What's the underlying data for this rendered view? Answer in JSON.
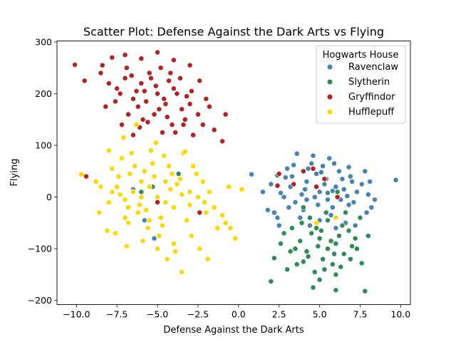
{
  "chart_data": {
    "type": "scatter",
    "title": "Scatter Plot: Defense Against the Dark Arts vs Flying",
    "xlabel": "Defense Against the Dark Arts",
    "ylabel": "Flying",
    "xlim": [
      -11.2,
      10.6
    ],
    "ylim": [
      -208,
      302
    ],
    "xticks": [
      -10.0,
      -7.5,
      -5.0,
      -2.5,
      0.0,
      2.5,
      5.0,
      7.5,
      10.0
    ],
    "xtick_labels": [
      "−10.0",
      "−7.5",
      "−5.0",
      "−2.5",
      "0.0",
      "2.5",
      "5.0",
      "7.5",
      "10.0"
    ],
    "yticks": [
      -200,
      -100,
      0,
      100,
      200,
      300
    ],
    "ytick_labels": [
      "−200",
      "−100",
      "0",
      "100",
      "200",
      "300"
    ],
    "grid": false,
    "legend": {
      "title": "Hogwarts House",
      "placement": "top-right"
    },
    "series": [
      {
        "name": "Ravenclaw",
        "color": "#4682b4",
        "points": [
          [
            5.0,
            10
          ],
          [
            4.2,
            30
          ],
          [
            6.0,
            20
          ],
          [
            3.5,
            -10
          ],
          [
            5.5,
            -5
          ],
          [
            4.8,
            45
          ],
          [
            6.5,
            15
          ],
          [
            2.8,
            0
          ],
          [
            3.0,
            55
          ],
          [
            4.5,
            65
          ],
          [
            5.2,
            60
          ],
          [
            6.2,
            50
          ],
          [
            7.0,
            30
          ],
          [
            7.3,
            10
          ],
          [
            6.8,
            -15
          ],
          [
            4.0,
            -25
          ],
          [
            5.8,
            -20
          ],
          [
            3.2,
            20
          ],
          [
            2.2,
            -30
          ],
          [
            4.6,
            80
          ],
          [
            5.6,
            75
          ],
          [
            7.8,
            50
          ],
          [
            8.0,
            5
          ],
          [
            8.2,
            -20
          ],
          [
            7.5,
            -40
          ],
          [
            6.6,
            -50
          ],
          [
            3.8,
            -40
          ],
          [
            2.5,
            -55
          ],
          [
            1.8,
            -25
          ],
          [
            1.5,
            10
          ],
          [
            0.8,
            44
          ],
          [
            9.7,
            33
          ],
          [
            3.6,
            84
          ],
          [
            5.9,
            65
          ],
          [
            6.9,
            40
          ],
          [
            4.9,
            -15
          ],
          [
            5.3,
            25
          ],
          [
            3.9,
            5
          ],
          [
            6.3,
            -5
          ],
          [
            4.4,
            -55
          ],
          [
            2.0,
            25
          ],
          [
            7.1,
            -10
          ],
          [
            5.4,
            35
          ],
          [
            3.3,
            40
          ],
          [
            6.1,
            0
          ],
          [
            4.1,
            15
          ],
          [
            5.7,
            -35
          ],
          [
            2.6,
            8
          ],
          [
            7.6,
            25
          ],
          [
            8.4,
            -5
          ],
          [
            6.4,
            35
          ],
          [
            4.7,
            0
          ],
          [
            3.1,
            -20
          ],
          [
            5.1,
            48
          ],
          [
            6.7,
            2
          ],
          [
            2.9,
            38
          ],
          [
            7.9,
            -30
          ],
          [
            5.0,
            -45
          ],
          [
            4.3,
            55
          ],
          [
            6.0,
            -60
          ],
          [
            -5.5,
            20
          ],
          [
            -6.5,
            15
          ],
          [
            -5.2,
            -80
          ],
          [
            -5.8,
            -45
          ],
          [
            4.2,
            -5
          ],
          [
            5.5,
            8
          ],
          [
            3.4,
            62
          ],
          [
            6.8,
            58
          ],
          [
            7.2,
            -55
          ],
          [
            8.1,
            30
          ],
          [
            2.4,
            -40
          ],
          [
            5.8,
            12
          ]
        ]
      },
      {
        "name": "Slytherin",
        "color": "#2e8b57",
        "points": [
          [
            5.0,
            -80
          ],
          [
            5.5,
            -100
          ],
          [
            6.0,
            -90
          ],
          [
            4.5,
            -70
          ],
          [
            6.5,
            -110
          ],
          [
            5.2,
            -120
          ],
          [
            4.8,
            -60
          ],
          [
            6.2,
            -75
          ],
          [
            7.0,
            -95
          ],
          [
            3.8,
            -85
          ],
          [
            5.8,
            -130
          ],
          [
            4.2,
            -105
          ],
          [
            6.8,
            -65
          ],
          [
            5.3,
            -140
          ],
          [
            4.0,
            -125
          ],
          [
            7.2,
            -80
          ],
          [
            3.5,
            -100
          ],
          [
            6.0,
            -150
          ],
          [
            5.0,
            -160
          ],
          [
            4.6,
            -175
          ],
          [
            2.0,
            -163
          ],
          [
            7.8,
            -182
          ],
          [
            6.0,
            -180
          ],
          [
            3.0,
            -140
          ],
          [
            2.2,
            -118
          ],
          [
            3.3,
            -60
          ],
          [
            2.8,
            -70
          ],
          [
            7.5,
            -40
          ],
          [
            8.0,
            -75
          ],
          [
            7.6,
            -128
          ],
          [
            6.6,
            -30
          ],
          [
            5.5,
            -45
          ],
          [
            4.4,
            -40
          ],
          [
            3.6,
            -130
          ],
          [
            4.9,
            -95
          ],
          [
            6.4,
            -55
          ],
          [
            5.7,
            -85
          ],
          [
            4.3,
            -115
          ],
          [
            6.9,
            -120
          ],
          [
            5.1,
            -65
          ],
          [
            3.9,
            -50
          ],
          [
            7.3,
            -100
          ],
          [
            5.9,
            -110
          ],
          [
            4.7,
            -145
          ],
          [
            6.3,
            -135
          ],
          [
            2.6,
            -90
          ],
          [
            3.2,
            -105
          ],
          [
            6.1,
            10
          ],
          [
            4.0,
            -20
          ],
          [
            5.4,
            -30
          ],
          [
            2.4,
            42
          ],
          [
            -3.7,
            45
          ],
          [
            -5.3,
            20
          ],
          [
            -6.0,
            10
          ]
        ]
      },
      {
        "name": "Gryffindor",
        "color": "#b22222",
        "points": [
          [
            -5.0,
            200
          ],
          [
            -6.0,
            220
          ],
          [
            -4.5,
            180
          ],
          [
            -5.5,
            240
          ],
          [
            -4.0,
            210
          ],
          [
            -6.5,
            190
          ],
          [
            -3.5,
            170
          ],
          [
            -7.0,
            230
          ],
          [
            -5.2,
            160
          ],
          [
            -4.8,
            250
          ],
          [
            -6.2,
            175
          ],
          [
            -3.8,
            200
          ],
          [
            -5.8,
            205
          ],
          [
            -4.3,
            225
          ],
          [
            -7.5,
            210
          ],
          [
            -3.0,
            180
          ],
          [
            -6.8,
            160
          ],
          [
            -5.6,
            145
          ],
          [
            -4.1,
            140
          ],
          [
            -2.5,
            160
          ],
          [
            -2.0,
            190
          ],
          [
            -1.5,
            130
          ],
          [
            -1.0,
            108
          ],
          [
            -0.8,
            160
          ],
          [
            -2.8,
            120
          ],
          [
            -3.3,
            150
          ],
          [
            -6.5,
            120
          ],
          [
            -7.2,
            140
          ],
          [
            -8.0,
            220
          ],
          [
            -8.5,
            240
          ],
          [
            -7.8,
            270
          ],
          [
            -7.0,
            275
          ],
          [
            -6.0,
            268
          ],
          [
            -5.0,
            280
          ],
          [
            -4.2,
            240
          ],
          [
            -3.0,
            255
          ],
          [
            -2.4,
            225
          ],
          [
            -9.5,
            225
          ],
          [
            -10.1,
            256
          ],
          [
            -7.6,
            185
          ],
          [
            -8.2,
            175
          ],
          [
            -6.9,
            250
          ],
          [
            -5.4,
            230
          ],
          [
            -4.6,
            190
          ],
          [
            -3.6,
            230
          ],
          [
            -5.9,
            150
          ],
          [
            -4.9,
            170
          ],
          [
            -2.2,
            140
          ],
          [
            -3.9,
            125
          ],
          [
            -6.3,
            205
          ],
          [
            -5.1,
            215
          ],
          [
            -4.4,
            155
          ],
          [
            -5.7,
            185
          ],
          [
            -6.6,
            235
          ],
          [
            -4.0,
            265
          ],
          [
            -2.9,
            205
          ],
          [
            -1.8,
            175
          ],
          [
            -3.2,
            195
          ],
          [
            -7.3,
            200
          ],
          [
            -8.4,
            255
          ],
          [
            -6.1,
            135
          ],
          [
            -4.7,
            125
          ],
          [
            -3.4,
            140
          ],
          [
            -9.4,
            40
          ],
          [
            -5.0,
            -10
          ],
          [
            2.5,
            45
          ],
          [
            2.4,
            22
          ],
          [
            3.4,
            25
          ],
          [
            4.0,
            50
          ],
          [
            4.8,
            20
          ],
          [
            5.3,
            35
          ],
          [
            4.6,
            55
          ],
          [
            6.1,
            0
          ],
          [
            -2.4,
            -30
          ]
        ]
      },
      {
        "name": "Hufflepuff",
        "color": "#ffd700",
        "points": [
          [
            -5.0,
            0
          ],
          [
            -5.5,
            20
          ],
          [
            -4.5,
            -10
          ],
          [
            -6.0,
            30
          ],
          [
            -4.0,
            -20
          ],
          [
            -6.5,
            10
          ],
          [
            -3.5,
            5
          ],
          [
            -7.0,
            -5
          ],
          [
            -5.2,
            40
          ],
          [
            -4.8,
            -40
          ],
          [
            -6.2,
            -30
          ],
          [
            -3.8,
            25
          ],
          [
            -5.8,
            50
          ],
          [
            -4.3,
            60
          ],
          [
            -7.5,
            20
          ],
          [
            -3.0,
            -15
          ],
          [
            -6.8,
            -50
          ],
          [
            -5.6,
            -60
          ],
          [
            -4.1,
            45
          ],
          [
            -2.5,
            0
          ],
          [
            -2.0,
            -30
          ],
          [
            -1.5,
            -20
          ],
          [
            -1.0,
            -35
          ],
          [
            -0.5,
            -60
          ],
          [
            -0.2,
            -80
          ],
          [
            0.2,
            15
          ],
          [
            -8.0,
            -10
          ],
          [
            -8.5,
            20
          ],
          [
            -9.7,
            44
          ],
          [
            -8.8,
            30
          ],
          [
            -7.8,
            55
          ],
          [
            -7.2,
            75
          ],
          [
            -6.6,
            85
          ],
          [
            -5.4,
            90
          ],
          [
            -4.6,
            80
          ],
          [
            -3.4,
            85
          ],
          [
            -2.8,
            60
          ],
          [
            -2.2,
            30
          ],
          [
            -1.8,
            10
          ],
          [
            -7.6,
            -70
          ],
          [
            -6.9,
            -95
          ],
          [
            -5.9,
            -85
          ],
          [
            -4.9,
            -75
          ],
          [
            -3.9,
            -105
          ],
          [
            -3.5,
            -145
          ],
          [
            -4.4,
            -120
          ],
          [
            -2.4,
            -100
          ],
          [
            -1.9,
            -120
          ],
          [
            -0.8,
            -50
          ],
          [
            -8.1,
            -65
          ],
          [
            -7.1,
            115
          ],
          [
            -6.3,
            140
          ],
          [
            -8.0,
            90
          ],
          [
            -5.3,
            65
          ],
          [
            -6.1,
            -15
          ],
          [
            -4.2,
            15
          ],
          [
            -3.2,
            -45
          ],
          [
            -2.6,
            45
          ],
          [
            -5.7,
            -25
          ],
          [
            -6.7,
            45
          ],
          [
            -7.3,
            5
          ],
          [
            -8.6,
            -30
          ],
          [
            -3.6,
            35
          ],
          [
            -4.7,
            -55
          ],
          [
            -5.1,
            105
          ],
          [
            -6.4,
            60
          ],
          [
            -2.9,
            -75
          ],
          [
            -1.3,
            -60
          ],
          [
            -4.0,
            -90
          ],
          [
            -5.0,
            -100
          ],
          [
            -7.0,
            -40
          ],
          [
            -6.0,
            0
          ],
          [
            -3.0,
            10
          ],
          [
            -4.5,
            30
          ],
          [
            -5.5,
            -45
          ],
          [
            -2.1,
            -10
          ],
          [
            -7.4,
            40
          ],
          [
            -6.8,
            -20
          ],
          [
            -3.3,
            88
          ],
          [
            -0.6,
            20
          ],
          [
            -7.8,
            10
          ],
          [
            4.8,
            -50
          ],
          [
            6.0,
            -40
          ]
        ]
      }
    ]
  }
}
